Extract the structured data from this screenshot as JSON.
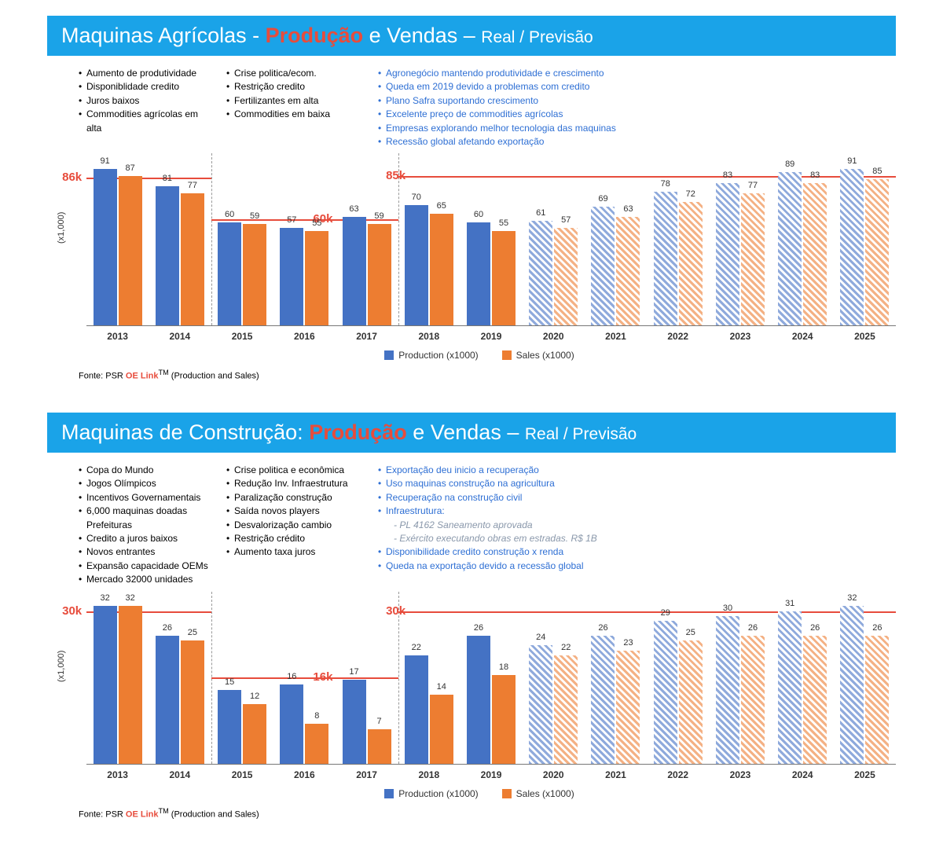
{
  "colors": {
    "titlebar": "#1aa3e8",
    "emph": "#e74c3c",
    "prod": "#4472c4",
    "sales": "#ed7d31",
    "prod_fc": "#8faadc",
    "sales_fc": "#f4b184",
    "annot_blue": "#2e6fd4"
  },
  "panels": [
    {
      "title": {
        "p1": "Maquinas Agrícolas - ",
        "em": "Produção",
        "p2": " e Vendas – ",
        "sub": "Real / Previsão"
      },
      "annot": {
        "c1": [
          "Aumento de produtividade",
          "Disponiblidade credito",
          "Juros baixos",
          "Commodities agrícolas em alta"
        ],
        "c2": [
          "Crise politica/ecom.",
          "Restrição credito",
          "Fertilizantes em alta",
          "Commodities em baixa"
        ],
        "c3": [
          "Agronegócio mantendo produtividade e crescimento",
          "Queda em 2019 devido a problemas com credito",
          "Plano Safra suportando crescimento",
          "Excelente preço de commodities agrícolas",
          "Empresas explorando melhor tecnologia das maquinas",
          "Recessão global afetando exportação"
        ]
      },
      "chart": {
        "type": "grouped-bar",
        "ylabel": "(x1,000)",
        "ymax": 100,
        "categories": [
          "2013",
          "2014",
          "2015",
          "2016",
          "2017",
          "2018",
          "2019",
          "2020",
          "2021",
          "2022",
          "2023",
          "2024",
          "2025"
        ],
        "forecast_from": 7,
        "series": [
          {
            "name": "Production (x1000)",
            "role": "production",
            "values": [
              91,
              81,
              60,
              57,
              63,
              70,
              60,
              61,
              69,
              78,
              83,
              89,
              91
            ]
          },
          {
            "name": "Sales (x1000)",
            "role": "sales",
            "values": [
              87,
              77,
              59,
              55,
              59,
              65,
              55,
              57,
              63,
              72,
              77,
              83,
              85
            ]
          }
        ],
        "ref": [
          {
            "label": "86k",
            "left_pct": -3,
            "y": 86
          },
          {
            "label": "60k",
            "left_pct": 28,
            "y": 62
          },
          {
            "label": "85k",
            "left_pct": 37,
            "y": 87
          }
        ],
        "dividers": [
          15.4,
          38.5
        ],
        "legend": [
          "Production (x1000)",
          "Sales (x1000)"
        ]
      },
      "source": {
        "pre": "Fonte: PSR ",
        "oe": "OE Link",
        "tm": "TM",
        "post": " (Production and Sales)"
      }
    },
    {
      "title": {
        "p1": "Maquinas de Construção: ",
        "em": "Produção",
        "p2": " e Vendas – ",
        "sub": "Real / Previsão"
      },
      "annot": {
        "c1": [
          "Copa do Mundo",
          "Jogos Olímpicos",
          "Incentivos Governamentais",
          "6,000 maquinas doadas Prefeituras",
          "Credito a juros baixos",
          "Novos entrantes",
          "Expansão capacidade OEMs",
          "Mercado 32000 unidades"
        ],
        "c2": [
          "Crise politica e econômica",
          "Redução Inv. Infraestrutura",
          "Paralização construção",
          "Saída novos players",
          "Desvalorização cambio",
          "Restrição crédito",
          "Aumento taxa juros"
        ],
        "c3": [
          "Exportação deu inicio a recuperação",
          "Uso maquinas construção na agricultura",
          "Recuperação na construção civil",
          "Infraestrutura:",
          {
            "ind": true,
            "t": "- PL 4162 Saneamento aprovada"
          },
          {
            "ind": true,
            "t": "- Exército executando obras em estradas. R$ 1B"
          },
          "Disponibilidade credito construção x renda",
          "Queda na exportação devido a recessão global"
        ]
      },
      "chart": {
        "type": "grouped-bar",
        "ylabel": "(x1,000)",
        "ymax": 35,
        "categories": [
          "2013",
          "2014",
          "2015",
          "2016",
          "2017",
          "2018",
          "2019",
          "2020",
          "2021",
          "2022",
          "2023",
          "2024",
          "2025"
        ],
        "forecast_from": 7,
        "series": [
          {
            "name": "Production (x1000)",
            "role": "production",
            "values": [
              32,
              26,
              15,
              16,
              17,
              22,
              26,
              24,
              26,
              29,
              30,
              31,
              32
            ]
          },
          {
            "name": "Sales (x1000)",
            "role": "sales",
            "values": [
              32,
              25,
              12,
              8,
              7,
              14,
              18,
              22,
              23,
              25,
              26,
              26,
              26
            ]
          }
        ],
        "ref": [
          {
            "label": "30k",
            "left_pct": -3,
            "y": 31
          },
          {
            "label": "16k",
            "left_pct": 28,
            "y": 17.5
          },
          {
            "label": "30k",
            "left_pct": 37,
            "y": 31
          }
        ],
        "dividers": [
          15.4,
          38.5
        ],
        "legend": [
          "Production (x1000)",
          "Sales (x1000)"
        ]
      },
      "source": {
        "pre": "Fonte: PSR ",
        "oe": "OE Link",
        "tm": "TM",
        "post": " (Production and Sales)"
      }
    }
  ]
}
